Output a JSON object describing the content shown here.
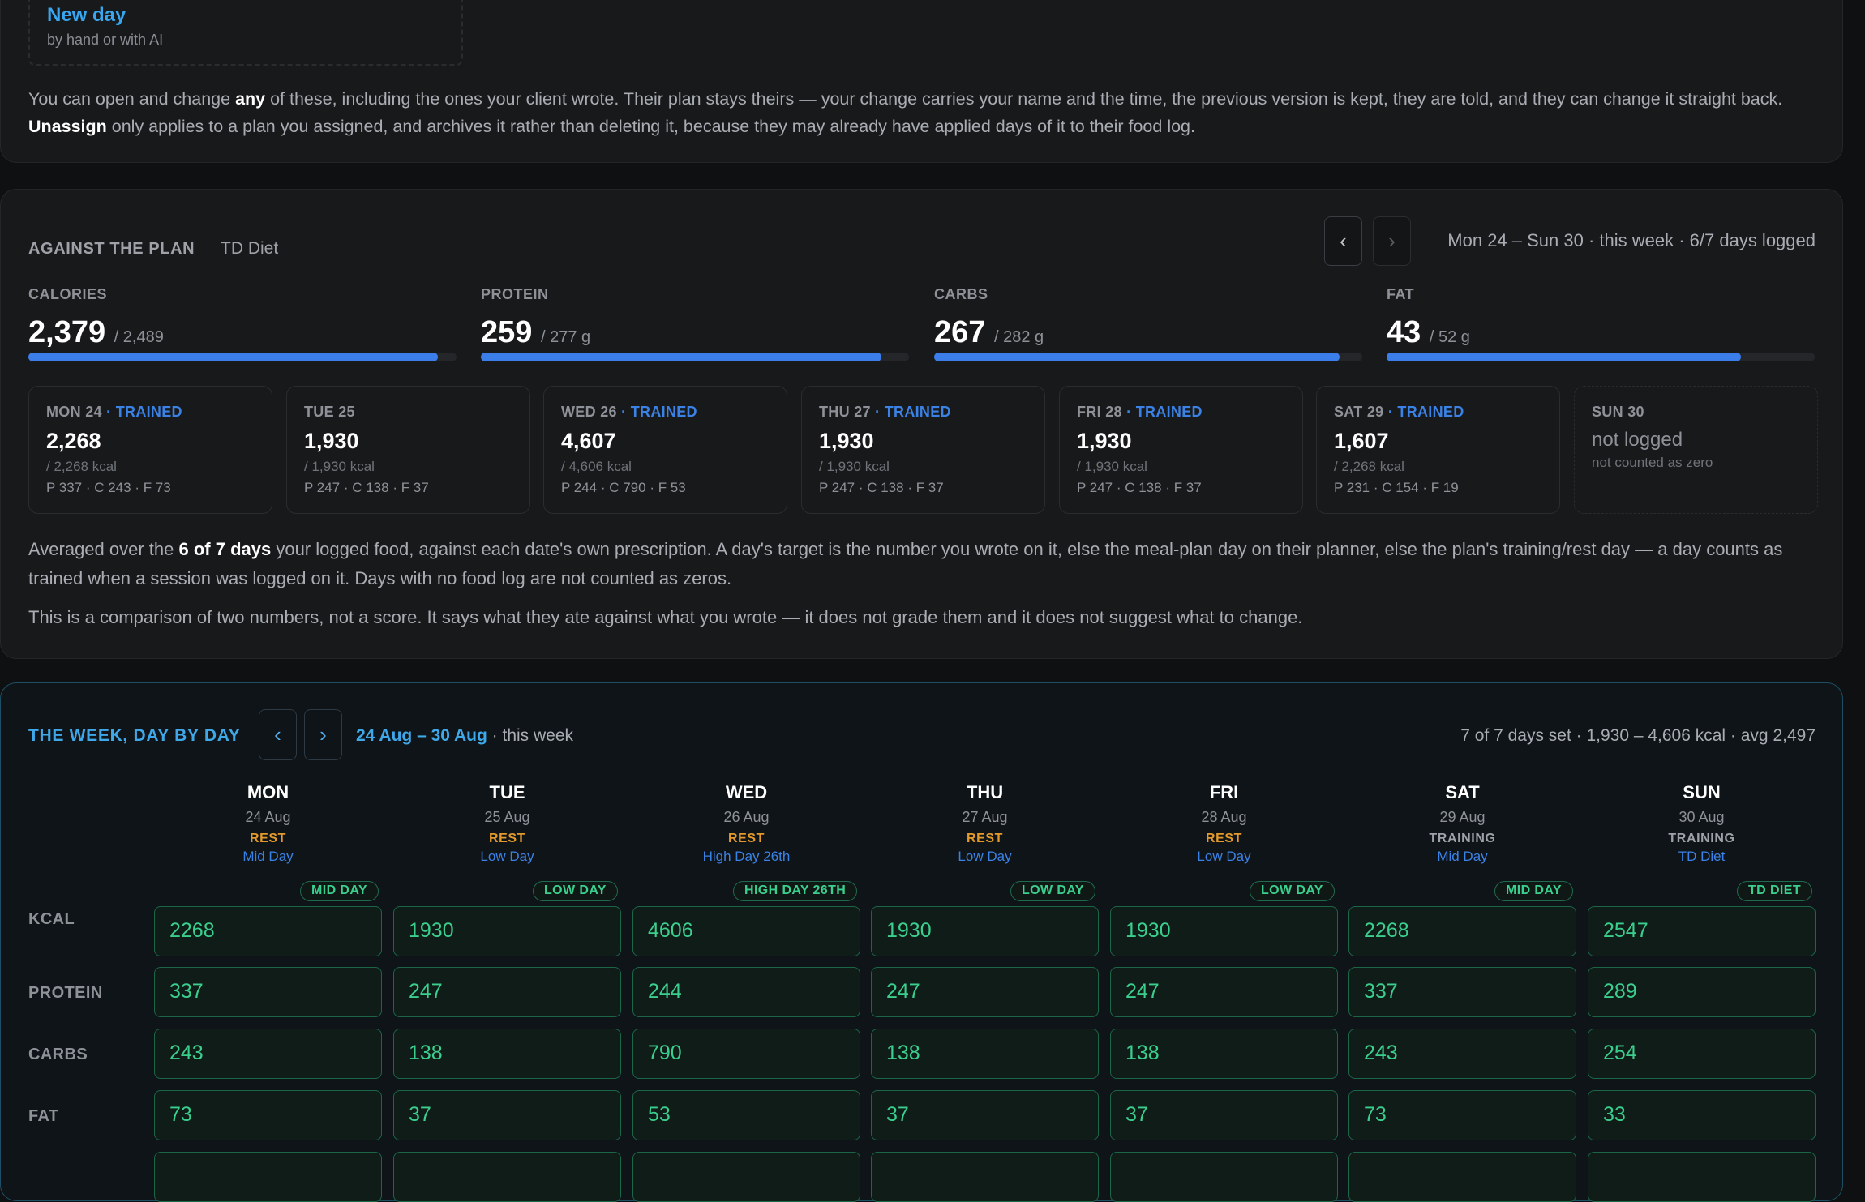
{
  "assign_panel": {
    "new_day": {
      "title": "New day",
      "subtitle": "by hand or with AI"
    },
    "note": {
      "t1": "You can open and change ",
      "b1": "any",
      "t2": " of these, including the ones your client wrote. Their plan stays theirs — your change carries your name and the time, the previous version is kept, they are told, and they can change it straight back. ",
      "b2": "Unassign",
      "t3": " only applies to a plan you assigned, and archives it rather than deleting it, because they may already have applied days of it to their food log."
    }
  },
  "against": {
    "title": "AGAINST THE PLAN",
    "plan": "TD Diet",
    "range": "Mon 24 – Sun 30 · this week · 6/7 days logged",
    "prev_icon": "chevron-left-icon",
    "next_icon": "chevron-right-icon",
    "macros": [
      {
        "label": "CALORIES",
        "value": "2,379",
        "target": "/ 2,489",
        "fraction": 0.956
      },
      {
        "label": "PROTEIN",
        "value": "259",
        "target": "/ 277 g",
        "fraction": 0.935
      },
      {
        "label": "CARBS",
        "value": "267",
        "target": "/ 282 g",
        "fraction": 0.947
      },
      {
        "label": "FAT",
        "value": "43",
        "target": "/ 52 g",
        "fraction": 0.827
      }
    ],
    "days": [
      {
        "day": "MON 24",
        "trained": "· TRAINED",
        "kcal": "2,268",
        "target": "/ 2,268 kcal",
        "macros": "P 337 · C 243 · F 73"
      },
      {
        "day": "TUE 25",
        "trained": "",
        "kcal": "1,930",
        "target": "/ 1,930 kcal",
        "macros": "P 247 · C 138 · F 37"
      },
      {
        "day": "WED 26",
        "trained": "· TRAINED",
        "kcal": "4,607",
        "target": "/ 4,606 kcal",
        "macros": "P 244 · C 790 · F 53"
      },
      {
        "day": "THU 27",
        "trained": "· TRAINED",
        "kcal": "1,930",
        "target": "/ 1,930 kcal",
        "macros": "P 247 · C 138 · F 37"
      },
      {
        "day": "FRI 28",
        "trained": "· TRAINED",
        "kcal": "1,930",
        "target": "/ 1,930 kcal",
        "macros": "P 247 · C 138 · F 37"
      },
      {
        "day": "SAT 29",
        "trained": "· TRAINED",
        "kcal": "1,607",
        "target": "/ 2,268 kcal",
        "macros": "P 231 · C 154 · F 19"
      },
      {
        "day": "SUN 30",
        "trained": "",
        "kcal": "not logged",
        "target": "not counted as zero",
        "macros": ""
      }
    ],
    "para1": {
      "t1": "Averaged over the ",
      "b1": "6 of 7 days",
      "t2": " your logged food, against each date's own prescription. A day's target is the number you wrote on it, else the meal-plan day on their planner, else the plan's training/rest day — a day counts as trained when a session was logged on it. Days with no food log are not counted as zeros."
    },
    "para2": "This is a comparison of two numbers, not a score. It says what they ate against what you wrote — it does not grade them and it does not suggest what to change."
  },
  "week": {
    "title": "THE WEEK, DAY BY DAY",
    "range": "24 Aug – 30 Aug",
    "range_suffix": " · this week",
    "summary": "7 of 7 days set · 1,930 – 4,606 kcal · avg 2,497",
    "prev_icon": "chevron-left-icon",
    "next_icon": "chevron-right-icon",
    "rows": [
      "KCAL",
      "PROTEIN",
      "CARBS",
      "FAT"
    ],
    "columns": [
      {
        "day": "MON",
        "date": "24 Aug",
        "type": "REST",
        "plan": "Mid Day",
        "tag": "MID DAY",
        "kcal": "2268",
        "protein": "337",
        "carbs": "243",
        "fat": "73"
      },
      {
        "day": "TUE",
        "date": "25 Aug",
        "type": "REST",
        "plan": "Low Day",
        "tag": "LOW DAY",
        "kcal": "1930",
        "protein": "247",
        "carbs": "138",
        "fat": "37"
      },
      {
        "day": "WED",
        "date": "26 Aug",
        "type": "REST",
        "plan": "High Day 26th",
        "tag": "HIGH DAY 26TH",
        "kcal": "4606",
        "protein": "244",
        "carbs": "790",
        "fat": "53"
      },
      {
        "day": "THU",
        "date": "27 Aug",
        "type": "REST",
        "plan": "Low Day",
        "tag": "LOW DAY",
        "kcal": "1930",
        "protein": "247",
        "carbs": "138",
        "fat": "37"
      },
      {
        "day": "FRI",
        "date": "28 Aug",
        "type": "REST",
        "plan": "Low Day",
        "tag": "LOW DAY",
        "kcal": "1930",
        "protein": "247",
        "carbs": "138",
        "fat": "37"
      },
      {
        "day": "SAT",
        "date": "29 Aug",
        "type": "TRAINING",
        "plan": "Mid Day",
        "tag": "MID DAY",
        "kcal": "2268",
        "protein": "337",
        "carbs": "243",
        "fat": "73"
      },
      {
        "day": "SUN",
        "date": "30 Aug",
        "type": "TRAINING",
        "plan": "TD Diet",
        "tag": "TD DIET",
        "kcal": "2547",
        "protein": "289",
        "carbs": "254",
        "fat": "33"
      }
    ]
  }
}
